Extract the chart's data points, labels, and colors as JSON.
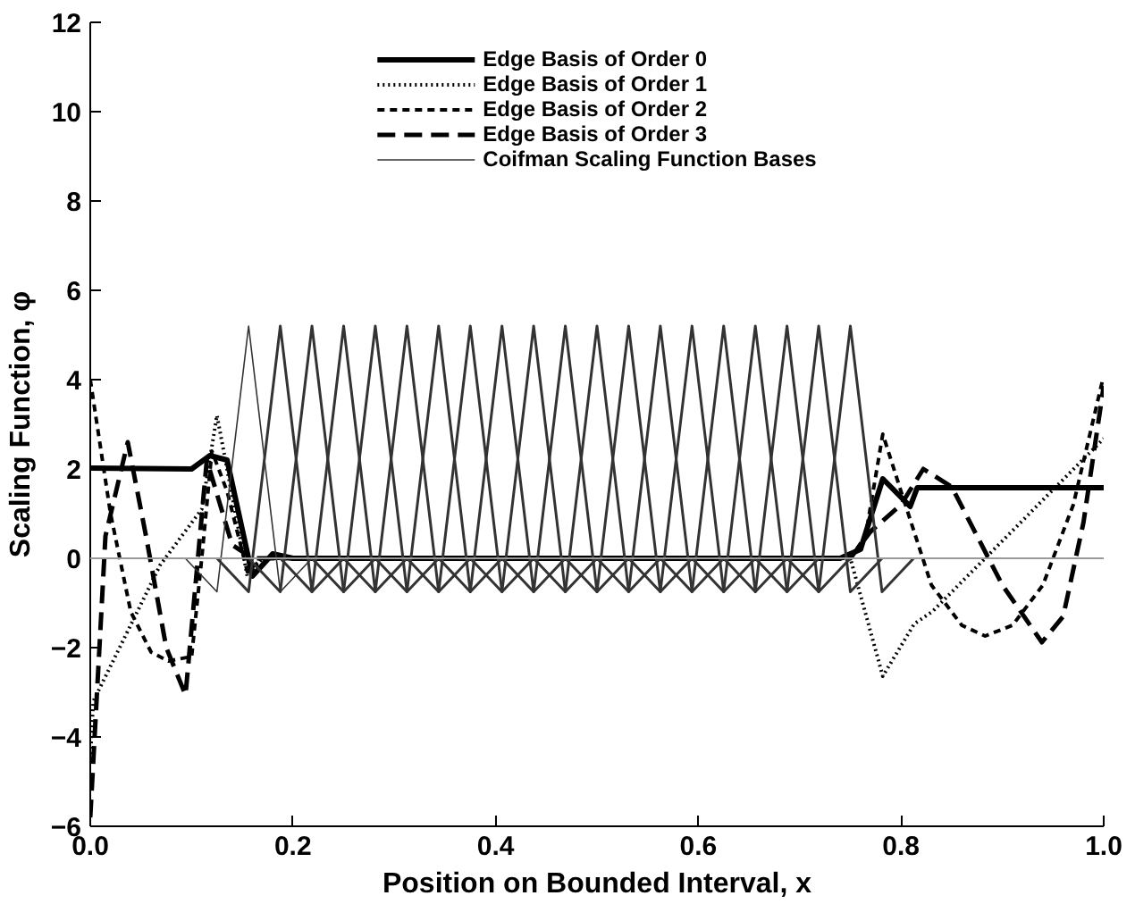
{
  "chart_data": {
    "type": "line",
    "xlabel": "Position on Bounded Interval, x",
    "ylabel": "Scaling Function, φ",
    "xlim": [
      0,
      1
    ],
    "ylim": [
      -6,
      12
    ],
    "xticks": [
      {
        "value": 0,
        "label": "0.0"
      },
      {
        "value": 0.2,
        "label": "0.2"
      },
      {
        "value": 0.4,
        "label": "0.4"
      },
      {
        "value": 0.6,
        "label": "0.6"
      },
      {
        "value": 0.8,
        "label": "0.8"
      },
      {
        "value": 1,
        "label": "1.0"
      }
    ],
    "yticks": [
      -6,
      -4,
      -2,
      0,
      2,
      4,
      6,
      8,
      10,
      12
    ],
    "grid": false,
    "legend": "top",
    "marker": "none",
    "series": [
      {
        "name": "Edge Basis of Order 0",
        "color": "#000000",
        "line_style": "solid",
        "x": [
          0,
          0.1,
          0.118,
          0.135,
          0.16,
          0.18,
          0.2,
          0.74,
          0.76,
          0.782,
          0.809,
          0.816,
          1.0
        ],
        "values": [
          2.02,
          2.0,
          2.3,
          2.2,
          -0.4,
          0.1,
          0,
          0,
          0.2,
          1.78,
          1.16,
          1.58,
          1.58
        ]
      },
      {
        "name": "Edge Basis of Order 1",
        "color": "#000000",
        "line_style": "dotted",
        "x": [
          0,
          0.003,
          0.069,
          0.11,
          0.125,
          0.155,
          0.17,
          0.75,
          0.782,
          0.813,
          0.831,
          1.0
        ],
        "values": [
          -4.5,
          -3.2,
          -0.15,
          1.1,
          3.2,
          -0.4,
          0,
          0,
          -2.64,
          -1.47,
          -1.19,
          2.68
        ]
      },
      {
        "name": "Edge Basis of Order 2",
        "color": "#000000",
        "line_style": "dashed",
        "x": [
          0,
          0.02,
          0.04,
          0.06,
          0.077,
          0.1,
          0.11,
          0.12,
          0.135,
          0.155,
          0.17,
          0.75,
          0.765,
          0.782,
          0.8,
          0.83,
          0.86,
          0.883,
          0.91,
          0.94,
          0.97,
          0.999
        ],
        "values": [
          4.0,
          1.0,
          -1.2,
          -2.1,
          -2.3,
          -2.2,
          0,
          2.4,
          1.5,
          -0.3,
          0,
          0,
          0.5,
          2.78,
          1.5,
          -0.6,
          -1.5,
          -1.74,
          -1.5,
          -0.6,
          1.2,
          4.0
        ]
      },
      {
        "name": "Edge Basis of Order 3",
        "color": "#000000",
        "line_style": "dashed",
        "x": [
          0,
          0.015,
          0.037,
          0.055,
          0.075,
          0.094,
          0.115,
          0.14,
          0.16,
          0.75,
          0.77,
          0.8,
          0.822,
          0.85,
          0.9,
          0.939,
          0.96,
          0.98,
          1.0
        ],
        "values": [
          -5.8,
          0.5,
          2.6,
          0.5,
          -2.0,
          -3.06,
          2.2,
          0.3,
          0,
          0,
          0.6,
          1.2,
          2.0,
          1.6,
          -0.6,
          -1.88,
          -1.3,
          0.8,
          3.86
        ]
      },
      {
        "name": "Coifman Scaling Function Bases",
        "color": "#333333",
        "line_style": "solid",
        "x": [
          0.09375,
          0.125,
          0.15625,
          0.1875,
          0.21875
        ],
        "values": [
          0,
          -0.75,
          5.2,
          -0.75,
          0
        ]
      },
      {
        "color": "#333333",
        "line_style": "solid",
        "x": [
          0.125,
          0.15625,
          0.1875,
          0.21875,
          0.25
        ],
        "values": [
          0,
          -0.75,
          5.2,
          -0.75,
          0
        ]
      },
      {
        "color": "#333333",
        "line_style": "solid",
        "x": [
          0.15625,
          0.1875,
          0.21875,
          0.25,
          0.28125
        ],
        "values": [
          0,
          -0.75,
          5.2,
          -0.75,
          0
        ]
      },
      {
        "color": "#333333",
        "line_style": "solid",
        "x": [
          0.1875,
          0.21875,
          0.25,
          0.28125,
          0.3125
        ],
        "values": [
          0,
          -0.75,
          5.2,
          -0.75,
          0
        ]
      },
      {
        "color": "#333333",
        "line_style": "solid",
        "x": [
          0.21875,
          0.25,
          0.28125,
          0.3125,
          0.34375
        ],
        "values": [
          0,
          -0.75,
          5.2,
          -0.75,
          0
        ]
      },
      {
        "color": "#333333",
        "line_style": "solid",
        "x": [
          0.25,
          0.28125,
          0.3125,
          0.34375,
          0.375
        ],
        "values": [
          0,
          -0.75,
          5.2,
          -0.75,
          0
        ]
      },
      {
        "color": "#333333",
        "line_style": "solid",
        "x": [
          0.28125,
          0.3125,
          0.34375,
          0.375,
          0.40625
        ],
        "values": [
          0,
          -0.75,
          5.2,
          -0.75,
          0
        ]
      },
      {
        "color": "#333333",
        "line_style": "solid",
        "x": [
          0.3125,
          0.34375,
          0.375,
          0.40625,
          0.4375
        ],
        "values": [
          0,
          -0.75,
          5.2,
          -0.75,
          0
        ]
      },
      {
        "color": "#333333",
        "line_style": "solid",
        "x": [
          0.34375,
          0.375,
          0.40625,
          0.4375,
          0.46875
        ],
        "values": [
          0,
          -0.75,
          5.2,
          -0.75,
          0
        ]
      },
      {
        "color": "#333333",
        "line_style": "solid",
        "x": [
          0.375,
          0.40625,
          0.4375,
          0.46875,
          0.5
        ],
        "values": [
          0,
          -0.75,
          5.2,
          -0.75,
          0
        ]
      },
      {
        "color": "#333333",
        "line_style": "solid",
        "x": [
          0.40625,
          0.4375,
          0.46875,
          0.5,
          0.53125
        ],
        "values": [
          0,
          -0.75,
          5.2,
          -0.75,
          0
        ]
      },
      {
        "color": "#333333",
        "line_style": "solid",
        "x": [
          0.4375,
          0.46875,
          0.5,
          0.53125,
          0.5625
        ],
        "values": [
          0,
          -0.75,
          5.2,
          -0.75,
          0
        ]
      },
      {
        "color": "#333333",
        "line_style": "solid",
        "x": [
          0.46875,
          0.5,
          0.53125,
          0.5625,
          0.59375
        ],
        "values": [
          0,
          -0.75,
          5.2,
          -0.75,
          0
        ]
      },
      {
        "color": "#333333",
        "line_style": "solid",
        "x": [
          0.5,
          0.53125,
          0.5625,
          0.59375,
          0.625
        ],
        "values": [
          0,
          -0.75,
          5.2,
          -0.75,
          0
        ]
      },
      {
        "color": "#333333",
        "line_style": "solid",
        "x": [
          0.53125,
          0.5625,
          0.59375,
          0.625,
          0.65625
        ],
        "values": [
          0,
          -0.75,
          5.2,
          -0.75,
          0
        ]
      },
      {
        "color": "#333333",
        "line_style": "solid",
        "x": [
          0.5625,
          0.59375,
          0.625,
          0.65625,
          0.6875
        ],
        "values": [
          0,
          -0.75,
          5.2,
          -0.75,
          0
        ]
      },
      {
        "color": "#333333",
        "line_style": "solid",
        "x": [
          0.59375,
          0.625,
          0.65625,
          0.6875,
          0.71875
        ],
        "values": [
          0,
          -0.75,
          5.2,
          -0.75,
          0
        ]
      },
      {
        "color": "#333333",
        "line_style": "solid",
        "x": [
          0.625,
          0.65625,
          0.6875,
          0.71875,
          0.75
        ],
        "values": [
          0,
          -0.75,
          5.2,
          -0.75,
          0
        ]
      },
      {
        "color": "#333333",
        "line_style": "solid",
        "x": [
          0.65625,
          0.6875,
          0.71875,
          0.75,
          0.78125
        ],
        "values": [
          0,
          -0.75,
          5.2,
          -0.75,
          0
        ]
      },
      {
        "color": "#333333",
        "line_style": "solid",
        "x": [
          0.6875,
          0.71875,
          0.75,
          0.78125,
          0.8125
        ],
        "values": [
          0,
          -0.75,
          5.2,
          -0.75,
          0
        ]
      }
    ],
    "ref_lines": [
      {
        "axis": "y",
        "value": 0,
        "color": "#999999"
      }
    ]
  }
}
